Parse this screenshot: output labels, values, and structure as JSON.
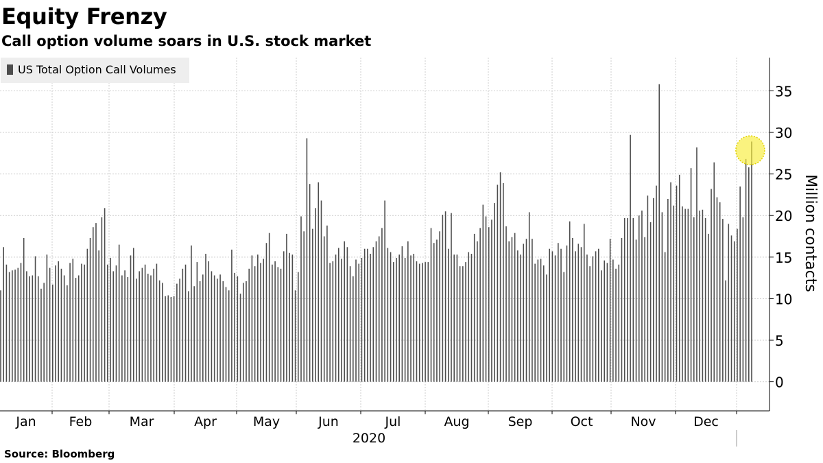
{
  "title": "Equity Frenzy",
  "subtitle": "Call option volume soars in U.S. stock market",
  "source": "Source: Bloomberg",
  "colors": {
    "bar": "#4d4d4d",
    "grid": "#cccccc",
    "highlight": "#f7ec3a",
    "legend_bg": "#eeeeee"
  },
  "chart_data": {
    "type": "bar",
    "title": "Equity Frenzy",
    "subtitle": "Call option volume soars in U.S. stock market",
    "ylabel": "Million contacts",
    "xlabel": "2020",
    "ylim": [
      -3.5,
      39
    ],
    "yticks": [
      0,
      5,
      10,
      15,
      20,
      25,
      30,
      35
    ],
    "month_labels": [
      "Jan",
      "Feb",
      "Mar",
      "Apr",
      "May",
      "Jun",
      "Jul",
      "Aug",
      "Sep",
      "Oct",
      "Nov",
      "Dec"
    ],
    "year_label": "2020",
    "grid": true,
    "legend_position": "top-left",
    "highlight_note": "yellow circle marks the final days of the series",
    "series": [
      {
        "name": "US Total Option Call Volumes",
        "values": [
          11.0,
          16.2,
          14.1,
          13.2,
          13.4,
          13.5,
          13.7,
          14.3,
          17.3,
          13.3,
          12.7,
          12.8,
          15.1,
          12.7,
          11.2,
          11.9,
          15.3,
          13.7,
          11.7,
          14.0,
          14.5,
          13.6,
          12.8,
          11.6,
          14.3,
          14.8,
          12.5,
          12.8,
          14.2,
          14.1,
          16.0,
          17.3,
          18.6,
          19.1,
          15.8,
          19.8,
          20.9,
          14.1,
          14.9,
          13.3,
          14.0,
          16.5,
          12.8,
          13.4,
          12.6,
          15.2,
          16.1,
          12.4,
          13.3,
          13.7,
          14.1,
          13.0,
          12.8,
          13.6,
          14.2,
          12.2,
          11.9,
          10.3,
          10.4,
          10.2,
          10.3,
          11.8,
          12.4,
          13.6,
          14.1,
          10.9,
          16.4,
          11.5,
          14.4,
          12.1,
          12.9,
          15.4,
          14.5,
          13.3,
          12.8,
          12.4,
          12.9,
          12.1,
          11.4,
          11.0,
          15.9,
          13.1,
          12.7,
          10.6,
          11.9,
          12.1,
          13.6,
          15.2,
          13.9,
          15.3,
          14.3,
          14.8,
          16.7,
          17.9,
          14.1,
          14.5,
          13.8,
          13.6,
          15.7,
          17.8,
          15.5,
          15.3,
          11.0,
          13.2,
          19.9,
          18.1,
          29.3,
          23.8,
          18.4,
          20.9,
          24.0,
          21.8,
          17.5,
          18.8,
          14.3,
          14.5,
          15.3,
          16.1,
          14.8,
          16.9,
          16.2,
          13.9,
          12.7,
          14.7,
          14.2,
          14.9,
          16.0,
          16.0,
          15.4,
          16.2,
          16.9,
          17.5,
          18.5,
          21.8,
          16.1,
          15.6,
          14.4,
          14.9,
          15.3,
          16.3,
          14.9,
          16.9,
          15.2,
          15.4,
          14.5,
          14.2,
          14.3,
          14.4,
          14.4,
          18.5,
          16.7,
          17.1,
          18.1,
          20.1,
          20.5,
          16.0,
          20.3,
          15.3,
          15.3,
          13.9,
          13.9,
          14.4,
          15.6,
          15.4,
          17.8,
          16.9,
          18.5,
          21.3,
          19.9,
          18.6,
          19.5,
          21.5,
          23.7,
          25.2,
          23.9,
          18.7,
          16.9,
          17.4,
          17.9,
          15.8,
          15.3,
          16.6,
          17.2,
          20.4,
          17.2,
          14.2,
          14.7,
          14.8,
          14.0,
          12.9,
          16.0,
          15.7,
          15.2,
          16.7,
          16.0,
          13.2,
          16.4,
          19.3,
          17.3,
          15.7,
          16.6,
          16.2,
          19.0,
          15.3,
          13.9,
          15.1,
          15.7,
          16.0,
          13.4,
          14.6,
          14.3,
          17.2,
          14.7,
          13.6,
          14.1,
          17.3,
          19.7,
          19.7,
          29.7,
          19.7,
          17.1,
          20.0,
          20.6,
          17.4,
          22.4,
          19.2,
          22.1,
          23.6,
          35.8,
          20.4,
          15.6,
          22.0,
          24.0,
          21.2,
          23.6,
          24.9,
          21.1,
          20.8,
          20.8,
          25.7,
          19.8,
          28.2,
          20.6,
          20.7,
          19.7,
          17.8,
          23.2,
          26.4,
          22.2,
          21.6,
          19.6,
          12.2,
          19.0,
          17.6,
          16.9,
          18.4,
          23.5,
          19.8,
          26.8,
          25.8,
          28.9
        ]
      }
    ]
  }
}
